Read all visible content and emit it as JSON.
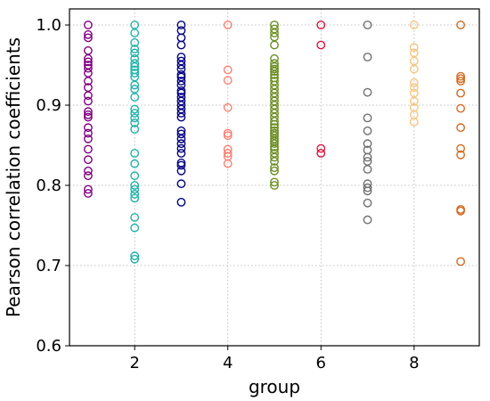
{
  "chart_data": {
    "type": "scatter",
    "title": "",
    "xlabel": "group",
    "ylabel": "Pearson correlation coefficients",
    "xlim": [
      0.6,
      9.4
    ],
    "ylim": [
      0.6,
      1.02
    ],
    "x_ticks": [
      2,
      4,
      6,
      8
    ],
    "y_ticks": [
      0.6,
      0.7,
      0.8,
      0.9,
      1.0
    ],
    "x_tick_labels": [
      "2",
      "4",
      "6",
      "8"
    ],
    "y_tick_labels": [
      "0.6",
      "0.7",
      "0.8",
      "0.9",
      "1.0"
    ],
    "grid": true,
    "marker": "hollow-circle",
    "series": [
      {
        "x": 1,
        "color": "#800080",
        "values": [
          1.0,
          0.988,
          0.984,
          0.968,
          0.958,
          0.954,
          0.95,
          0.946,
          0.94,
          0.93,
          0.922,
          0.912,
          0.905,
          0.892,
          0.888,
          0.885,
          0.872,
          0.865,
          0.858,
          0.845,
          0.832,
          0.818,
          0.812,
          0.795,
          0.79
        ]
      },
      {
        "x": 2,
        "color": "#20b2aa",
        "values": [
          1.0,
          0.99,
          0.978,
          0.97,
          0.965,
          0.958,
          0.952,
          0.948,
          0.944,
          0.94,
          0.935,
          0.925,
          0.92,
          0.91,
          0.895,
          0.89,
          0.884,
          0.878,
          0.87,
          0.84,
          0.827,
          0.812,
          0.8,
          0.795,
          0.789,
          0.784,
          0.76,
          0.747,
          0.712,
          0.708
        ]
      },
      {
        "x": 3,
        "color": "#000080",
        "values": [
          1.0,
          0.993,
          0.984,
          0.975,
          0.96,
          0.955,
          0.95,
          0.945,
          0.938,
          0.935,
          0.93,
          0.925,
          0.918,
          0.915,
          0.91,
          0.905,
          0.9,
          0.895,
          0.89,
          0.885,
          0.868,
          0.864,
          0.858,
          0.852,
          0.846,
          0.84,
          0.828,
          0.825,
          0.818,
          0.802,
          0.779
        ]
      },
      {
        "x": 4,
        "color": "#fa8072",
        "values": [
          1.0,
          0.944,
          0.931,
          0.897,
          0.865,
          0.862,
          0.845,
          0.84,
          0.836,
          0.827
        ]
      },
      {
        "x": 5,
        "color": "#6b8e23",
        "values": [
          1.0,
          0.995,
          0.99,
          0.985,
          0.975,
          0.958,
          0.952,
          0.948,
          0.945,
          0.942,
          0.938,
          0.934,
          0.93,
          0.925,
          0.92,
          0.915,
          0.91,
          0.905,
          0.9,
          0.895,
          0.89,
          0.885,
          0.88,
          0.876,
          0.872,
          0.868,
          0.865,
          0.862,
          0.858,
          0.855,
          0.852,
          0.848,
          0.845,
          0.84,
          0.835,
          0.83,
          0.822,
          0.818,
          0.804,
          0.8
        ]
      },
      {
        "x": 6,
        "color": "#dc143c",
        "values": [
          1.0,
          0.975,
          0.846,
          0.84
        ]
      },
      {
        "x": 7,
        "color": "#707070",
        "values": [
          1.0,
          0.96,
          0.916,
          0.884,
          0.868,
          0.852,
          0.844,
          0.835,
          0.83,
          0.82,
          0.802,
          0.797,
          0.793,
          0.778,
          0.757
        ]
      },
      {
        "x": 8,
        "color": "#f5c77e",
        "values": [
          1.0,
          0.972,
          0.965,
          0.955,
          0.945,
          0.928,
          0.922,
          0.915,
          0.905,
          0.897,
          0.888,
          0.879
        ]
      },
      {
        "x": 9,
        "color": "#d2691e",
        "values": [
          1.0,
          0.936,
          0.933,
          0.93,
          0.915,
          0.896,
          0.872,
          0.846,
          0.838,
          0.77,
          0.768,
          0.705
        ]
      }
    ]
  }
}
